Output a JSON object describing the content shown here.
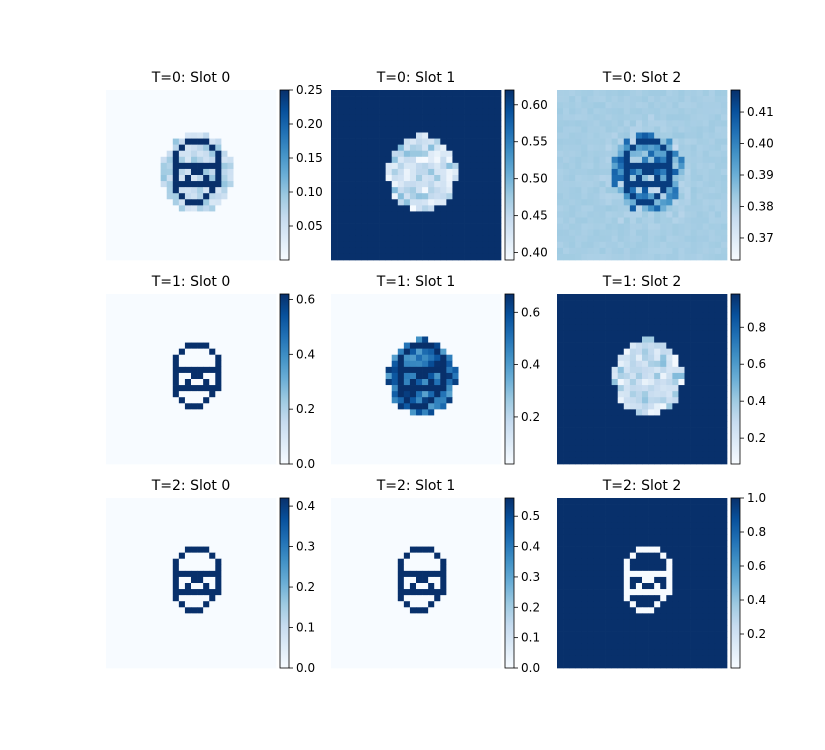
{
  "chart_data": [
    {
      "type": "heatmap",
      "title": "T=0: Slot 0",
      "pattern": "outline-halo",
      "background_level": 0.0,
      "colorbar": {
        "min": 0.0,
        "max": 0.25,
        "ticks": [
          0.05,
          0.1,
          0.15,
          0.2,
          0.25
        ],
        "tick_labels": [
          "0.05",
          "0.10",
          "0.15",
          "0.20",
          "0.25"
        ]
      }
    },
    {
      "type": "heatmap",
      "title": "T=0: Slot 1",
      "pattern": "inverted-blob",
      "background_level": 1.0,
      "colorbar": {
        "min": 0.39,
        "max": 0.62,
        "ticks": [
          0.4,
          0.45,
          0.5,
          0.55,
          0.6
        ],
        "tick_labels": [
          "0.40",
          "0.45",
          "0.50",
          "0.55",
          "0.60"
        ]
      }
    },
    {
      "type": "heatmap",
      "title": "T=0: Slot 2",
      "pattern": "outline-on-mid",
      "background_level": 0.35,
      "colorbar": {
        "min": 0.363,
        "max": 0.417,
        "ticks": [
          0.37,
          0.38,
          0.39,
          0.4,
          0.41
        ],
        "tick_labels": [
          "0.37",
          "0.38",
          "0.39",
          "0.40",
          "0.41"
        ]
      }
    },
    {
      "type": "heatmap",
      "title": "T=1: Slot 0",
      "pattern": "outline",
      "background_level": 0.0,
      "colorbar": {
        "min": 0.0,
        "max": 0.62,
        "ticks": [
          0.0,
          0.2,
          0.4,
          0.6
        ],
        "tick_labels": [
          "0.0",
          "0.2",
          "0.4",
          "0.6"
        ]
      }
    },
    {
      "type": "heatmap",
      "title": "T=1: Slot 1",
      "pattern": "outline-thick",
      "background_level": 0.0,
      "colorbar": {
        "min": 0.02,
        "max": 0.67,
        "ticks": [
          0.2,
          0.4,
          0.6
        ],
        "tick_labels": [
          "0.2",
          "0.4",
          "0.6"
        ]
      }
    },
    {
      "type": "heatmap",
      "title": "T=1: Slot 2",
      "pattern": "inverted-blob",
      "background_level": 1.0,
      "colorbar": {
        "min": 0.06,
        "max": 0.98,
        "ticks": [
          0.2,
          0.4,
          0.6,
          0.8
        ],
        "tick_labels": [
          "0.2",
          "0.4",
          "0.6",
          "0.8"
        ]
      }
    },
    {
      "type": "heatmap",
      "title": "T=2: Slot 0",
      "pattern": "outline",
      "background_level": 0.0,
      "colorbar": {
        "min": 0.0,
        "max": 0.42,
        "ticks": [
          0.0,
          0.1,
          0.2,
          0.3,
          0.4
        ],
        "tick_labels": [
          "0.0",
          "0.1",
          "0.2",
          "0.3",
          "0.4"
        ]
      }
    },
    {
      "type": "heatmap",
      "title": "T=2: Slot 1",
      "pattern": "outline",
      "background_level": 0.0,
      "colorbar": {
        "min": 0.0,
        "max": 0.56,
        "ticks": [
          0.0,
          0.1,
          0.2,
          0.3,
          0.4,
          0.5
        ],
        "tick_labels": [
          "0.0",
          "0.1",
          "0.2",
          "0.3",
          "0.4",
          "0.5"
        ]
      }
    },
    {
      "type": "heatmap",
      "title": "T=2: Slot 2",
      "pattern": "inverted-outline",
      "background_level": 1.0,
      "colorbar": {
        "min": 0.0,
        "max": 1.0,
        "ticks": [
          0.2,
          0.4,
          0.6,
          0.8,
          1.0
        ],
        "tick_labels": [
          "0.2",
          "0.4",
          "0.6",
          "0.8",
          "1.0"
        ]
      }
    }
  ],
  "colormap": "Blues",
  "grid_resolution": 28
}
